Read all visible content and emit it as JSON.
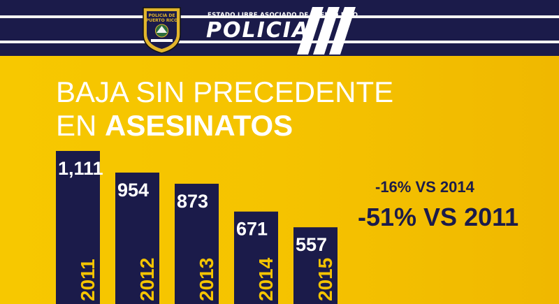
{
  "header": {
    "state_label": "ESTADO LIBRE ASOCIADO DE PUERTO RICO",
    "brand": "POLICIA",
    "seal_text_top": "POLICIA DE PUERTO RICO",
    "colors": {
      "navy": "#1b1b4a",
      "yellow": "#f5c400",
      "white": "#ffffff"
    }
  },
  "headline": {
    "line1": "BAJA SIN PRECEDENTE",
    "line2_prefix": "EN ",
    "line2_bold": "ASESINATOS"
  },
  "stats": {
    "vs_2014": "-16% VS 2014",
    "vs_2011": "-51% VS 2011"
  },
  "chart_data": {
    "type": "bar",
    "categories": [
      "2011",
      "2012",
      "2013",
      "2014",
      "2015"
    ],
    "values": [
      1111,
      954,
      873,
      671,
      557
    ],
    "value_labels": [
      "1,111",
      "954",
      "873",
      "671",
      "557"
    ],
    "title": "",
    "xlabel": "",
    "ylabel": "",
    "grid": false,
    "bar_color": "#1b1b4a"
  }
}
